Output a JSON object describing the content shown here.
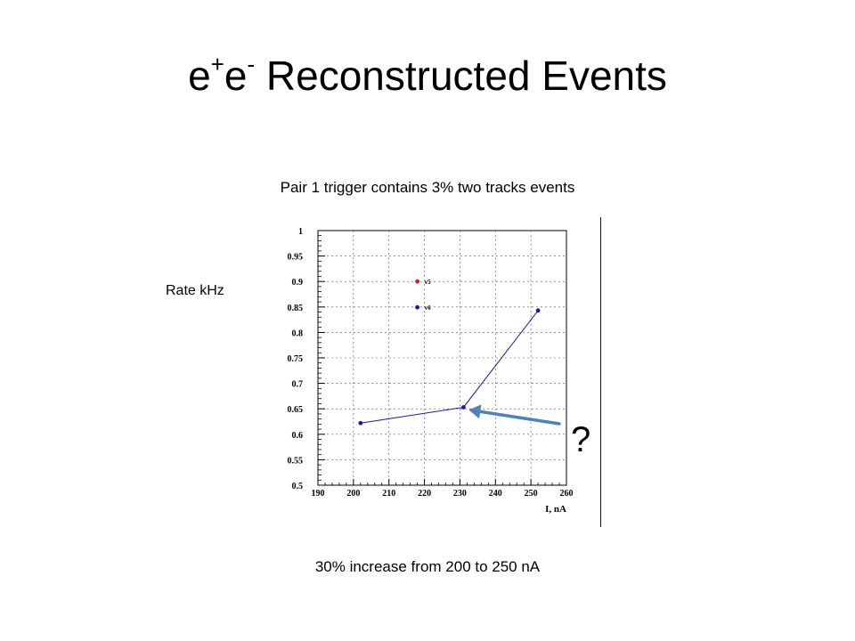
{
  "title": {
    "prefix": "e",
    "sup1": "+",
    "middle": "e",
    "sup2": "-",
    "rest": " Reconstructed Events"
  },
  "caption_top": "Pair 1 trigger contains 3% two tracks events",
  "caption_bottom": "30% increase from 200 to 250 nA",
  "y_axis_note": "Rate kHz",
  "annotation": "?",
  "chart_data": {
    "type": "line",
    "xlabel": "I, nA",
    "ylabel": "",
    "xlim": [
      190,
      260
    ],
    "ylim": [
      0.5,
      1.0
    ],
    "x_ticks": [
      "190",
      "200",
      "210",
      "220",
      "230",
      "240",
      "250",
      "260"
    ],
    "y_ticks": [
      "0.5",
      "0.55",
      "0.6",
      "0.65",
      "0.7",
      "0.75",
      "0.8",
      "0.85",
      "0.9",
      "0.95",
      "1"
    ],
    "grid": true,
    "legend_position": "top-center",
    "series": [
      {
        "name": "v6",
        "color": "#1a1aa8",
        "x": [
          202,
          231,
          252
        ],
        "y": [
          0.622,
          0.653,
          0.843
        ]
      }
    ],
    "legend": [
      {
        "label": "v5",
        "color": "#cc2222"
      },
      {
        "label": "v6",
        "color": "#1a1aa8"
      }
    ],
    "arrow_color": "#4f81bd"
  }
}
